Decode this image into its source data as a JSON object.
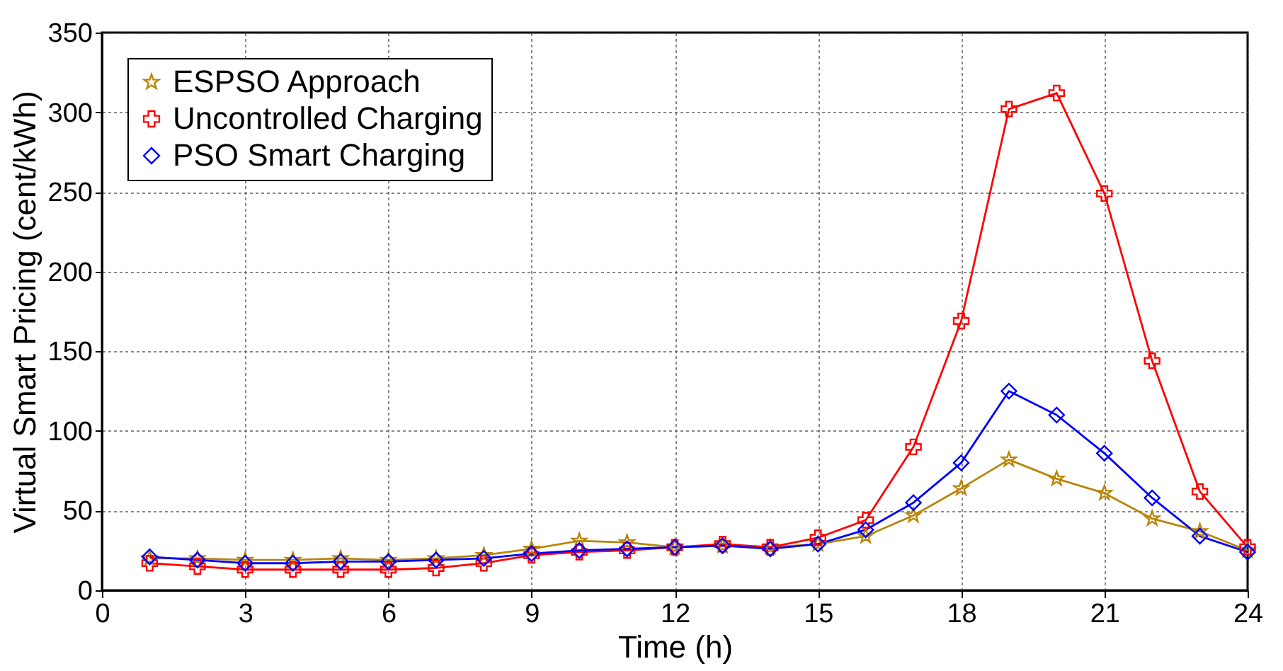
{
  "chart_data": {
    "type": "line",
    "xlabel": "Time (h)",
    "ylabel": "Virtual Smart Pricing (cent/kWh)",
    "x": [
      1,
      2,
      3,
      4,
      5,
      6,
      7,
      8,
      9,
      10,
      11,
      12,
      13,
      14,
      15,
      16,
      17,
      18,
      19,
      20,
      21,
      22,
      23,
      24
    ],
    "series": [
      {
        "name": "ESPSO Approach",
        "color": "#b8860b",
        "marker": "star",
        "values": [
          20,
          20,
          19,
          19,
          20,
          19,
          20,
          22,
          26,
          31,
          30,
          27,
          28,
          27,
          29,
          34,
          47,
          64,
          82,
          70,
          61,
          45,
          37,
          25
        ]
      },
      {
        "name": "Uncontrolled Charging",
        "color": "#ff0000",
        "marker": "cross",
        "values": [
          17,
          15,
          13,
          13,
          13,
          13,
          14,
          17,
          22,
          24,
          25,
          27,
          29,
          27,
          33,
          44,
          90,
          169,
          302,
          312,
          249,
          144,
          62,
          27
        ]
      },
      {
        "name": "PSO Smart Charging",
        "color": "#0000ff",
        "marker": "diamond",
        "values": [
          21,
          19,
          17,
          17,
          18,
          18,
          19,
          20,
          23,
          25,
          26,
          27,
          28,
          26,
          29,
          38,
          55,
          80,
          125,
          110,
          86,
          58,
          34,
          24
        ]
      }
    ],
    "xlim": [
      0,
      24
    ],
    "xticks": [
      0,
      3,
      6,
      9,
      12,
      15,
      18,
      21,
      24
    ],
    "ylim": [
      0,
      350
    ],
    "yticks": [
      0,
      50,
      100,
      150,
      200,
      250,
      300,
      350
    ],
    "grid": true,
    "legend": "top left",
    "line_style": "solid"
  }
}
